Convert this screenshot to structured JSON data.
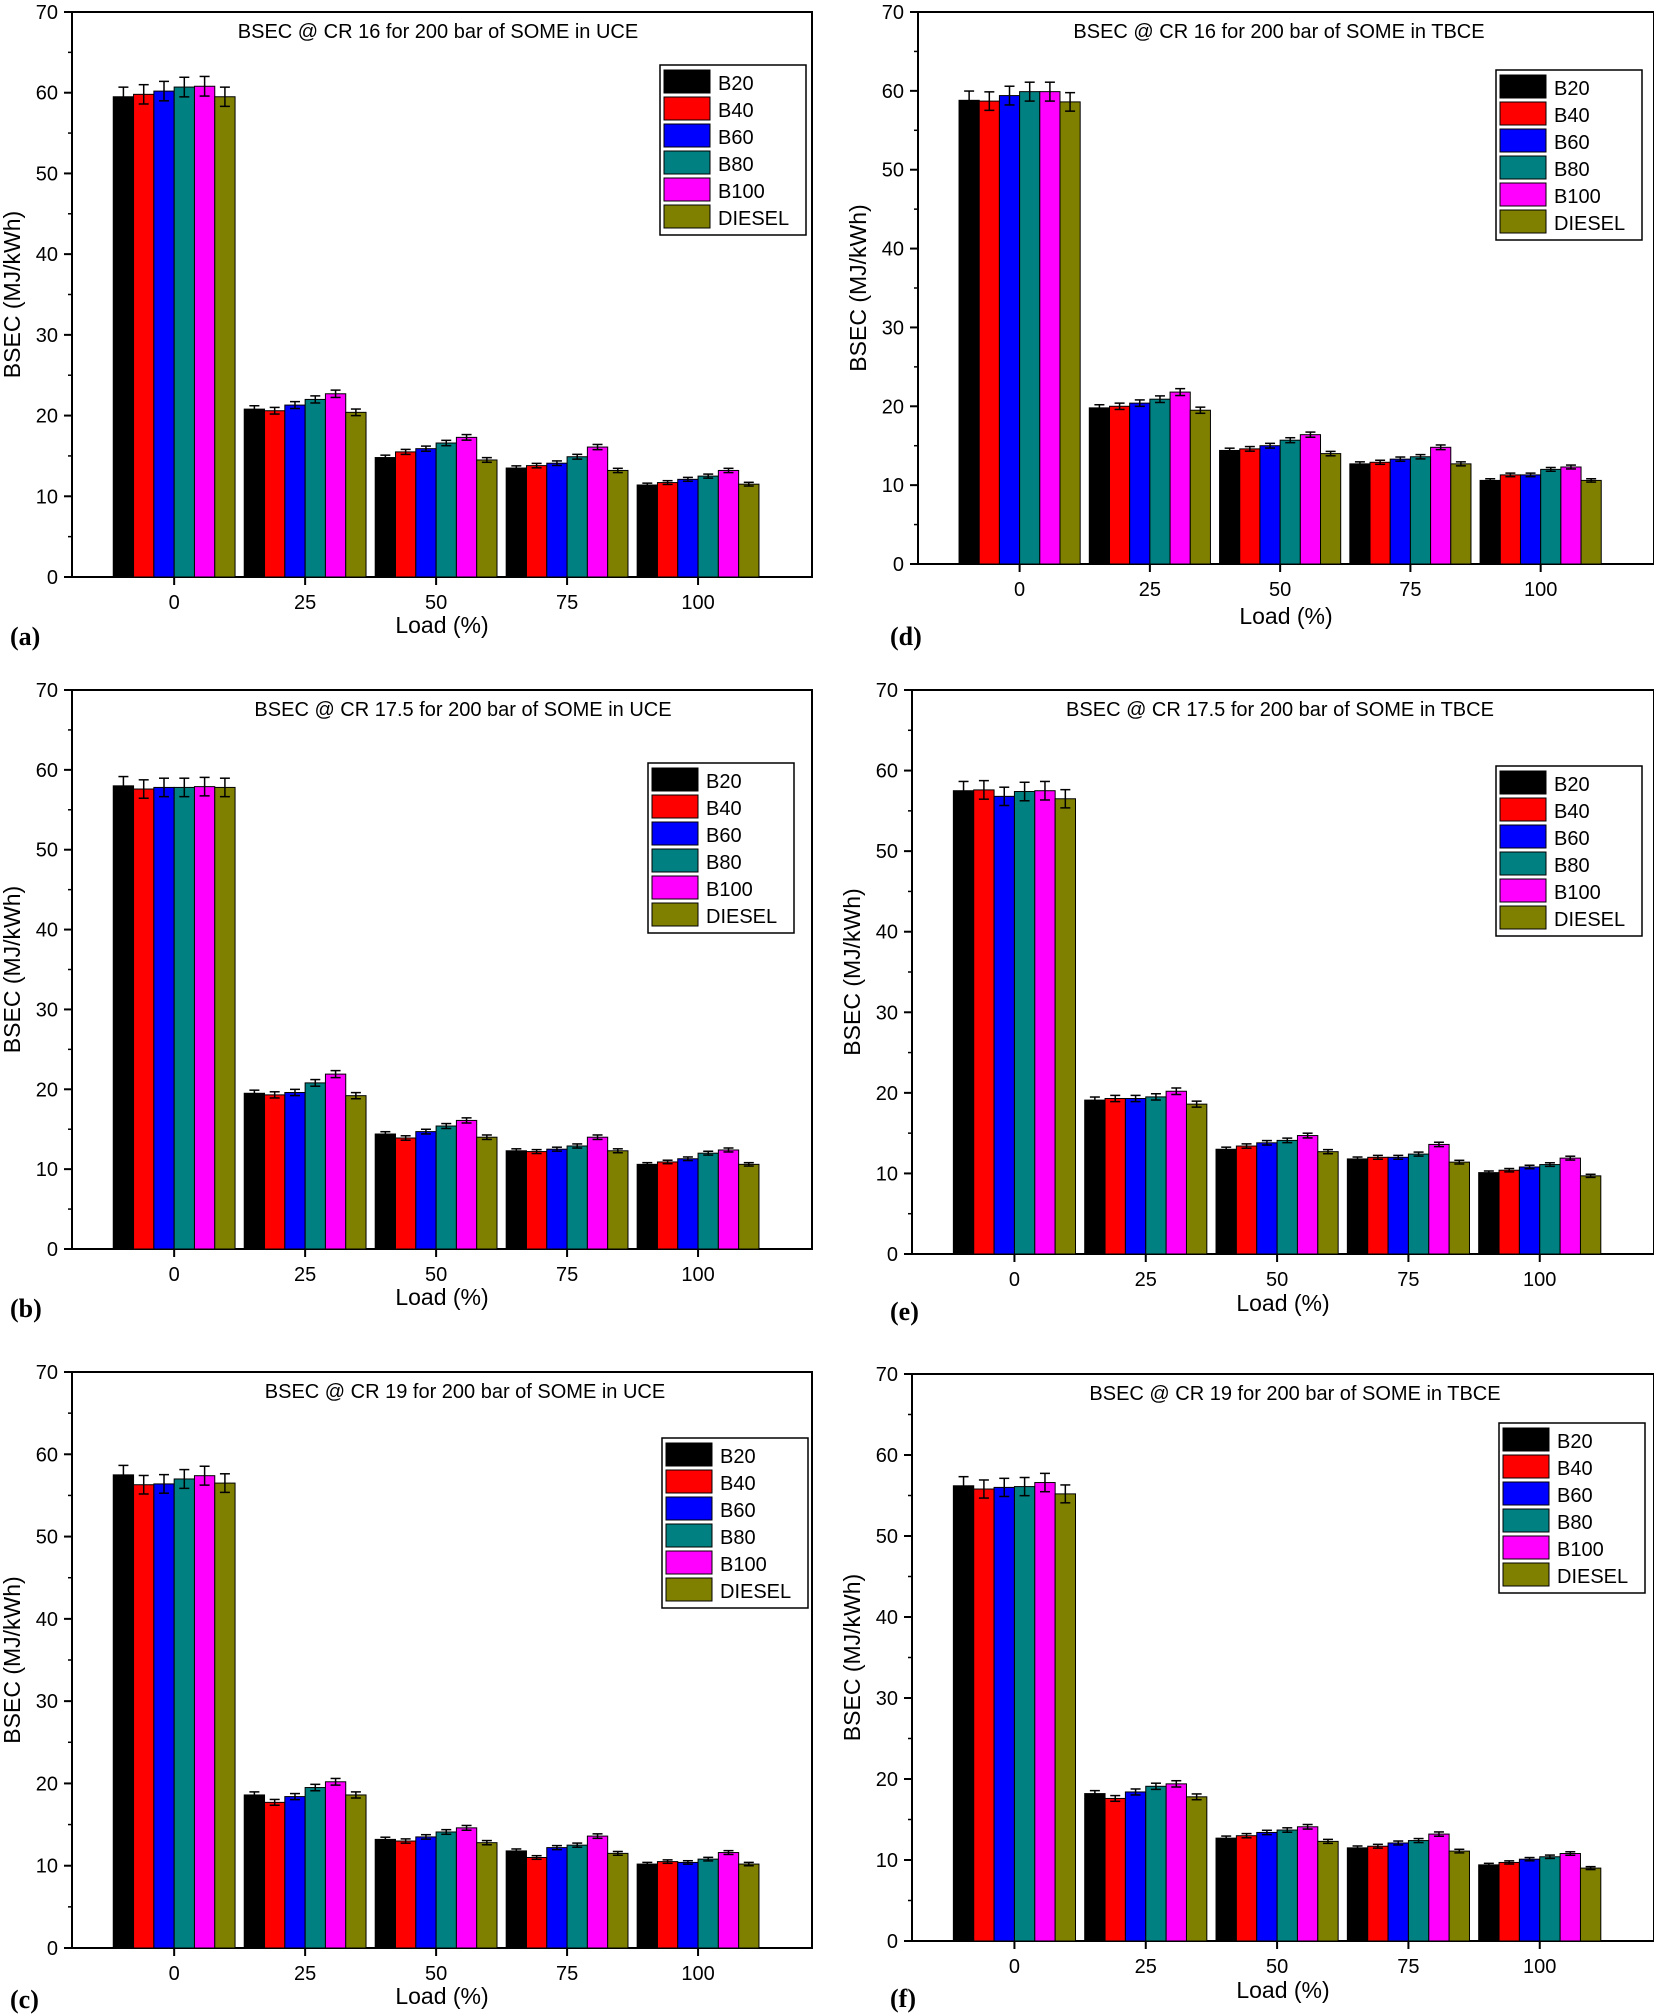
{
  "series_colors": {
    "B20": "#000000",
    "B40": "#ff0000",
    "B60": "#0000ff",
    "B80": "#008080",
    "B100": "#ff00ff",
    "DIESEL": "#808000"
  },
  "chart_data": [
    {
      "panel": "(a)",
      "type": "bar",
      "title": "BSEC @ CR 16  for 200 bar of SOME in UCE",
      "xlabel": "Load (%)",
      "ylabel": "BSEC (MJ/kWh)",
      "categories": [
        "0",
        "25",
        "50",
        "75",
        "100"
      ],
      "yticks": [
        "0",
        "10",
        "20",
        "30",
        "40",
        "50",
        "60",
        "70"
      ],
      "ylim": [
        0,
        70
      ],
      "legend_position": "top-right",
      "series": [
        {
          "name": "B20",
          "values": [
            59.5,
            20.8,
            14.8,
            13.5,
            11.4
          ]
        },
        {
          "name": "B40",
          "values": [
            59.8,
            20.6,
            15.5,
            13.8,
            11.7
          ]
        },
        {
          "name": "B60",
          "values": [
            60.2,
            21.3,
            15.9,
            14.1,
            12.1
          ]
        },
        {
          "name": "B80",
          "values": [
            60.7,
            22.0,
            16.6,
            14.9,
            12.5
          ]
        },
        {
          "name": "B100",
          "values": [
            60.8,
            22.7,
            17.3,
            16.1,
            13.2
          ]
        },
        {
          "name": "DIESEL",
          "values": [
            59.5,
            20.4,
            14.5,
            13.2,
            11.5
          ]
        }
      ]
    },
    {
      "panel": "(b)",
      "type": "bar",
      "title": "BSEC @ CR 17.5  for 200 bar of SOME in UCE",
      "xlabel": "Load (%)",
      "ylabel": "BSEC (MJ/kWh)",
      "categories": [
        "0",
        "25",
        "50",
        "75",
        "100"
      ],
      "yticks": [
        "0",
        "10",
        "20",
        "30",
        "40",
        "50",
        "60",
        "70"
      ],
      "ylim": [
        0,
        70
      ],
      "legend_position": "top-right",
      "series": [
        {
          "name": "B20",
          "values": [
            58.0,
            19.5,
            14.4,
            12.3,
            10.6
          ]
        },
        {
          "name": "B40",
          "values": [
            57.6,
            19.3,
            13.9,
            12.2,
            10.9
          ]
        },
        {
          "name": "B60",
          "values": [
            57.8,
            19.6,
            14.7,
            12.5,
            11.3
          ]
        },
        {
          "name": "B80",
          "values": [
            57.8,
            20.8,
            15.4,
            12.9,
            12.0
          ]
        },
        {
          "name": "B100",
          "values": [
            57.9,
            21.9,
            16.1,
            14.0,
            12.4
          ]
        },
        {
          "name": "DIESEL",
          "values": [
            57.8,
            19.2,
            14.0,
            12.3,
            10.6
          ]
        }
      ]
    },
    {
      "panel": "(c)",
      "type": "bar",
      "title": "BSEC @ CR 19  for 200 bar of SOME in UCE",
      "xlabel": "Load (%)",
      "ylabel": "BSEC (MJ/kWh)",
      "categories": [
        "0",
        "25",
        "50",
        "75",
        "100"
      ],
      "yticks": [
        "0",
        "10",
        "20",
        "30",
        "40",
        "50",
        "60",
        "70"
      ],
      "ylim": [
        0,
        70
      ],
      "legend_position": "top-right",
      "series": [
        {
          "name": "B20",
          "values": [
            57.5,
            18.6,
            13.2,
            11.8,
            10.2
          ]
        },
        {
          "name": "B40",
          "values": [
            56.3,
            17.7,
            13.0,
            11.0,
            10.5
          ]
        },
        {
          "name": "B60",
          "values": [
            56.4,
            18.4,
            13.5,
            12.2,
            10.4
          ]
        },
        {
          "name": "B80",
          "values": [
            57.0,
            19.5,
            14.1,
            12.5,
            10.8
          ]
        },
        {
          "name": "B100",
          "values": [
            57.4,
            20.2,
            14.6,
            13.6,
            11.6
          ]
        },
        {
          "name": "DIESEL",
          "values": [
            56.5,
            18.6,
            12.8,
            11.5,
            10.2
          ]
        }
      ]
    },
    {
      "panel": "(d)",
      "type": "bar",
      "title": "BSEC @ CR 16  for 200 bar of SOME in TBCE",
      "xlabel": "Load (%)",
      "ylabel": "BSEC (MJ/kWh)",
      "categories": [
        "0",
        "25",
        "50",
        "75",
        "100"
      ],
      "yticks": [
        "0",
        "10",
        "20",
        "30",
        "40",
        "50",
        "60",
        "70"
      ],
      "ylim": [
        0,
        70
      ],
      "legend_position": "top-right",
      "series": [
        {
          "name": "B20",
          "values": [
            58.8,
            19.8,
            14.4,
            12.7,
            10.6
          ]
        },
        {
          "name": "B40",
          "values": [
            58.7,
            20.0,
            14.6,
            12.9,
            11.3
          ]
        },
        {
          "name": "B60",
          "values": [
            59.4,
            20.4,
            15.0,
            13.3,
            11.3
          ]
        },
        {
          "name": "B80",
          "values": [
            59.9,
            20.9,
            15.7,
            13.6,
            12.0
          ]
        },
        {
          "name": "B100",
          "values": [
            59.9,
            21.8,
            16.4,
            14.8,
            12.3
          ]
        },
        {
          "name": "DIESEL",
          "values": [
            58.6,
            19.5,
            14.0,
            12.7,
            10.6
          ]
        }
      ]
    },
    {
      "panel": "(e)",
      "type": "bar",
      "title": "BSEC @ CR 17.5  for 200 bar of SOME in TBCE",
      "xlabel": "Load (%)",
      "ylabel": "BSEC (MJ/kWh)",
      "categories": [
        "0",
        "25",
        "50",
        "75",
        "100"
      ],
      "yticks": [
        "0",
        "10",
        "20",
        "30",
        "40",
        "50",
        "60",
        "70"
      ],
      "ylim": [
        0,
        70
      ],
      "legend_position": "top-right",
      "series": [
        {
          "name": "B20",
          "values": [
            57.5,
            19.1,
            13.0,
            11.8,
            10.1
          ]
        },
        {
          "name": "B40",
          "values": [
            57.6,
            19.3,
            13.4,
            12.0,
            10.4
          ]
        },
        {
          "name": "B60",
          "values": [
            56.8,
            19.3,
            13.8,
            12.0,
            10.8
          ]
        },
        {
          "name": "B80",
          "values": [
            57.4,
            19.5,
            14.1,
            12.4,
            11.1
          ]
        },
        {
          "name": "B100",
          "values": [
            57.5,
            20.2,
            14.7,
            13.6,
            11.9
          ]
        },
        {
          "name": "DIESEL",
          "values": [
            56.5,
            18.6,
            12.7,
            11.4,
            9.7
          ]
        }
      ]
    },
    {
      "panel": "(f)",
      "type": "bar",
      "title": "BSEC @ CR 19  for 200 bar of SOME in TBCE",
      "xlabel": "Load (%)",
      "ylabel": "BSEC (MJ/kWh)",
      "categories": [
        "0",
        "25",
        "50",
        "75",
        "100"
      ],
      "yticks": [
        "0",
        "10",
        "20",
        "30",
        "40",
        "50",
        "60",
        "70"
      ],
      "ylim": [
        0,
        70
      ],
      "legend_position": "top-right",
      "series": [
        {
          "name": "B20",
          "values": [
            56.2,
            18.2,
            12.7,
            11.5,
            9.4
          ]
        },
        {
          "name": "B40",
          "values": [
            55.8,
            17.6,
            13.0,
            11.7,
            9.7
          ]
        },
        {
          "name": "B60",
          "values": [
            56.0,
            18.4,
            13.4,
            12.1,
            10.1
          ]
        },
        {
          "name": "B80",
          "values": [
            56.1,
            19.1,
            13.7,
            12.4,
            10.4
          ]
        },
        {
          "name": "B100",
          "values": [
            56.6,
            19.4,
            14.1,
            13.2,
            10.8
          ]
        },
        {
          "name": "DIESEL",
          "values": [
            55.2,
            17.8,
            12.3,
            11.1,
            9.0
          ]
        }
      ]
    }
  ]
}
